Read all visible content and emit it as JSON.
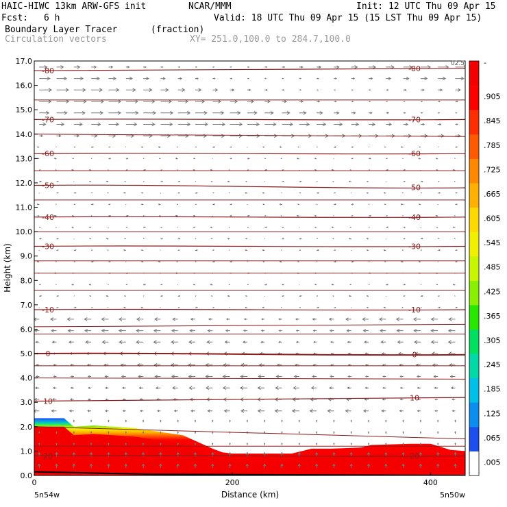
{
  "header": {
    "model": "HAIC-HIWC 13km ARW-GFS init",
    "org": "NCAR/MMM",
    "init": "Init: 12 UTC Thu 09 Apr 15",
    "fcst_label": "Fcst:",
    "fcst_value": "6 h",
    "valid": "Valid: 18 UTC Thu 09 Apr 15 (15 LST Thu 09 Apr 15)",
    "field_name": "Boundary Layer Tracer",
    "field_units": "(fraction)",
    "vector_label": "Circulation vectors",
    "xy_label": "XY= 251.0,100.0 to 284.7,100.0"
  },
  "chart_data": {
    "type": "heatmap",
    "title": "Boundary Layer Tracer",
    "xlabel": "Distance (km)",
    "ylabel": "Height (km)",
    "xlim": [
      0,
      435
    ],
    "ylim": [
      0,
      17
    ],
    "x_ticks": [
      0,
      200,
      400
    ],
    "y_ticks": [
      "0.0",
      "1.0",
      "2.0",
      "3.0",
      "4.0",
      "5.0",
      "6.0",
      "7.0",
      "8.0",
      "9.0",
      "10.0",
      "11.0",
      "12.0",
      "13.0",
      "14.0",
      "15.0",
      "16.0",
      "17.0"
    ],
    "x_corner_left": "5n54w",
    "x_corner_right": "5n50w",
    "corner_tag": "02.5",
    "colorbar": {
      "labels": [
        ".005",
        ".065",
        ".125",
        ".185",
        ".245",
        ".305",
        ".365",
        ".425",
        ".485",
        ".545",
        ".605",
        ".665",
        ".725",
        ".785",
        ".845",
        ".905"
      ],
      "top_label": "-",
      "colors": [
        "#ffffff",
        "#1d4ef0",
        "#0a8ff0",
        "#00bfe8",
        "#00d9a8",
        "#00e060",
        "#28e800",
        "#88f000",
        "#c8f500",
        "#f0f000",
        "#ffd800",
        "#ffb000",
        "#ff8800",
        "#ff5a00",
        "#ff2e00",
        "#ff0000",
        "#f40000"
      ]
    },
    "temperature_contours_C": [
      {
        "value": -80,
        "label": "-80",
        "y": [
          16.6,
          16.7
        ]
      },
      {
        "value": -70,
        "label": "-70",
        "y": [
          14.6,
          14.6
        ]
      },
      {
        "value": -60,
        "label": "-60",
        "y": [
          13.2,
          13.2
        ]
      },
      {
        "value": -50,
        "label": "-50",
        "y": [
          11.9,
          11.8
        ]
      },
      {
        "value": -40,
        "label": "-40",
        "y": [
          10.6,
          10.6
        ]
      },
      {
        "value": -30,
        "label": "-30",
        "y": [
          9.4,
          9.4
        ]
      },
      {
        "value": -10,
        "label": "-10",
        "y": [
          6.8,
          6.8
        ]
      },
      {
        "value": 0,
        "label": "0",
        "y": [
          5.0,
          4.95
        ]
      },
      {
        "value": 10,
        "label": "10",
        "y": [
          3.05,
          3.2
        ]
      },
      {
        "value": 20,
        "label": "20",
        "y": [
          0.8,
          0.8
        ]
      }
    ],
    "tracer_top_km": {
      "x": [
        0,
        30,
        40,
        60,
        100,
        150,
        180,
        190,
        200,
        230,
        250,
        260,
        280,
        300,
        330,
        340,
        380,
        400,
        420,
        435
      ],
      "y": [
        2.35,
        2.35,
        2.0,
        2.05,
        1.95,
        1.65,
        1.1,
        0.95,
        0.9,
        0.9,
        0.9,
        0.9,
        1.1,
        1.1,
        1.15,
        1.25,
        1.3,
        1.3,
        1.05,
        1.0
      ]
    },
    "vector_winds": [
      {
        "layer_km": [
          13.5,
          17.0
        ],
        "direction": "east",
        "strength": "strong"
      },
      {
        "layer_km": [
          6.5,
          13.5
        ],
        "direction": "mixed",
        "strength": "weak"
      },
      {
        "layer_km": [
          2.5,
          6.5
        ],
        "direction": "west",
        "strength": "moderate"
      },
      {
        "layer_km": [
          0.0,
          2.5
        ],
        "direction": "vertical",
        "strength": "weak"
      }
    ]
  }
}
